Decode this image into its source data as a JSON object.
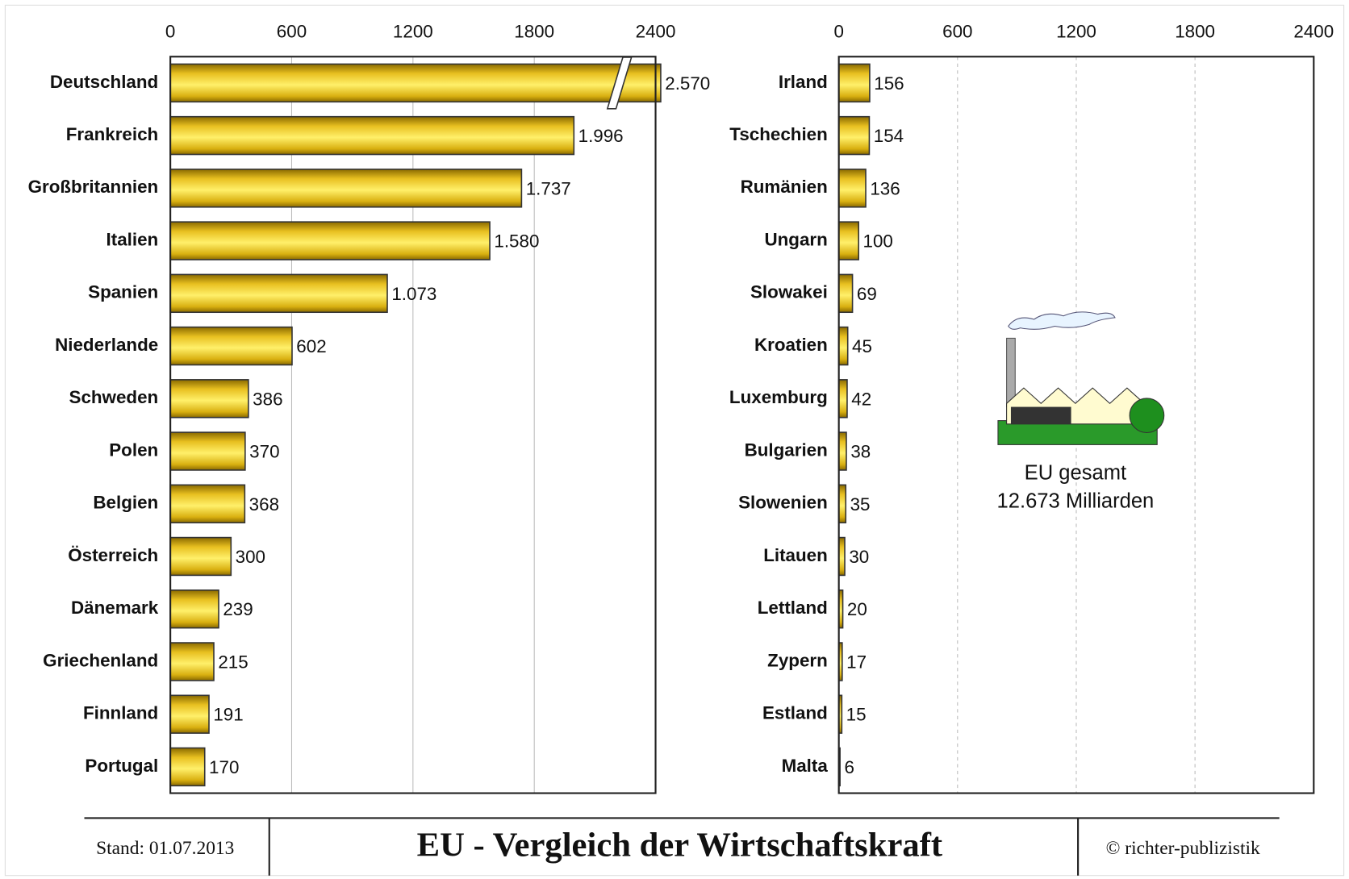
{
  "chart_data": [
    {
      "type": "barh",
      "categories": [
        "Deutschland",
        "Frankreich",
        "Großbritannien",
        "Italien",
        "Spanien",
        "Niederlande",
        "Schweden",
        "Polen",
        "Belgien",
        "Österreich",
        "Dänemark",
        "Griechenland",
        "Finnland",
        "Portugal"
      ],
      "values": [
        2570,
        1996,
        1737,
        1580,
        1073,
        602,
        386,
        370,
        368,
        300,
        239,
        215,
        191,
        170
      ],
      "value_labels": [
        "2.570",
        "1.996",
        "1.737",
        "1.580",
        "1.073",
        "602",
        "386",
        "370",
        "368",
        "300",
        "239",
        "215",
        "191",
        "170"
      ],
      "color": "#f2cc1e",
      "xlim": [
        0,
        2400
      ],
      "xticks": [
        0,
        600,
        1200,
        1800,
        2400
      ],
      "grid": true
    },
    {
      "type": "barh",
      "categories": [
        "Irland",
        "Tschechien",
        "Rumänien",
        "Ungarn",
        "Slowakei",
        "Kroatien",
        "Luxemburg",
        "Bulgarien",
        "Slowenien",
        "Litauen",
        "Lettland",
        "Zypern",
        "Estland",
        "Malta"
      ],
      "values": [
        156,
        154,
        136,
        100,
        69,
        45,
        42,
        38,
        35,
        30,
        20,
        17,
        15,
        6
      ],
      "color": "#f2cc1e",
      "xlim": [
        0,
        2400
      ],
      "xticks": [
        0,
        600,
        1200,
        1800,
        2400
      ],
      "grid": true,
      "annotation": [
        "EU gesamt",
        "12.673 Milliarden"
      ]
    }
  ],
  "footer": {
    "date": "Stand: 01.07.2013",
    "title": "EU - Vergleich der Wirtschaftskraft",
    "credit": "© richter-publizistik"
  }
}
